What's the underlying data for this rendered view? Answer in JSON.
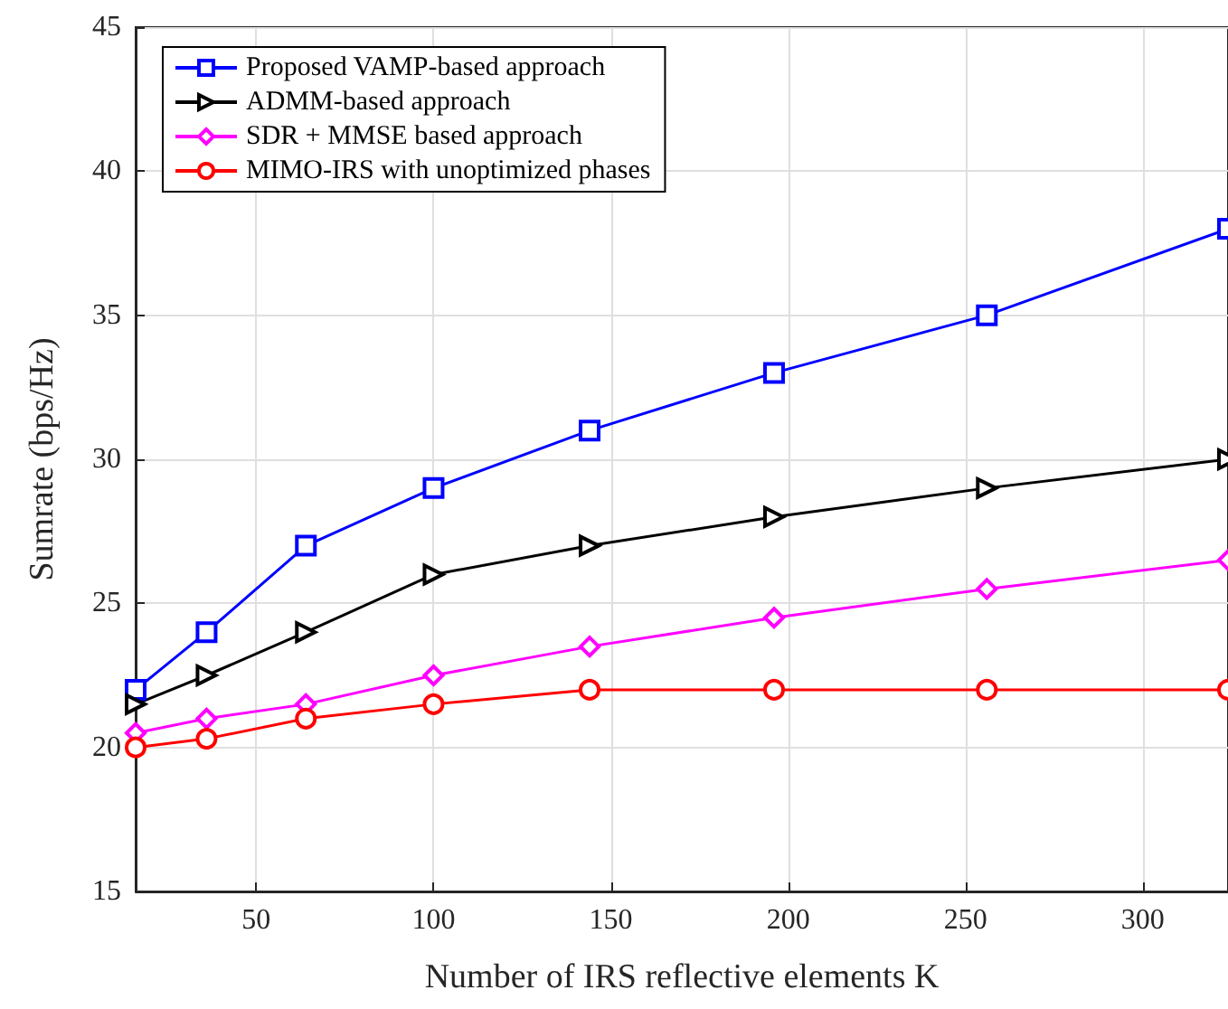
{
  "chart_data": {
    "type": "line",
    "xlabel": "Number of IRS reflective elements K",
    "ylabel": "Sumrate (bps/Hz)",
    "x": [
      16,
      36,
      64,
      100,
      144,
      196,
      256,
      324
    ],
    "series": [
      {
        "name": "Proposed VAMP-based approach",
        "color": "#0000ff",
        "marker": "square",
        "values": [
          22,
          24,
          27,
          29,
          31,
          33,
          35,
          38
        ]
      },
      {
        "name": "ADMM-based approach",
        "color": "#000000",
        "marker": "triangle",
        "values": [
          21.5,
          22.5,
          24,
          26,
          27,
          28,
          29,
          30
        ]
      },
      {
        "name": "SDR + MMSE based approach",
        "color": "#ff00ff",
        "marker": "diamond",
        "values": [
          20.5,
          21,
          21.5,
          22.5,
          23.5,
          24.5,
          25.5,
          26.5
        ]
      },
      {
        "name": "MIMO-IRS with unoptimized phases",
        "color": "#ff0000",
        "marker": "circle",
        "values": [
          20,
          20.3,
          21,
          21.5,
          22,
          22,
          22,
          22
        ]
      }
    ],
    "xlim": [
      16,
      324
    ],
    "xticks": [
      50,
      100,
      150,
      200,
      250,
      300
    ],
    "ylim": [
      15,
      45
    ],
    "yticks": [
      15,
      20,
      25,
      30,
      35,
      40,
      45
    ],
    "grid": true,
    "legend": "top left",
    "line_style": "solid"
  }
}
